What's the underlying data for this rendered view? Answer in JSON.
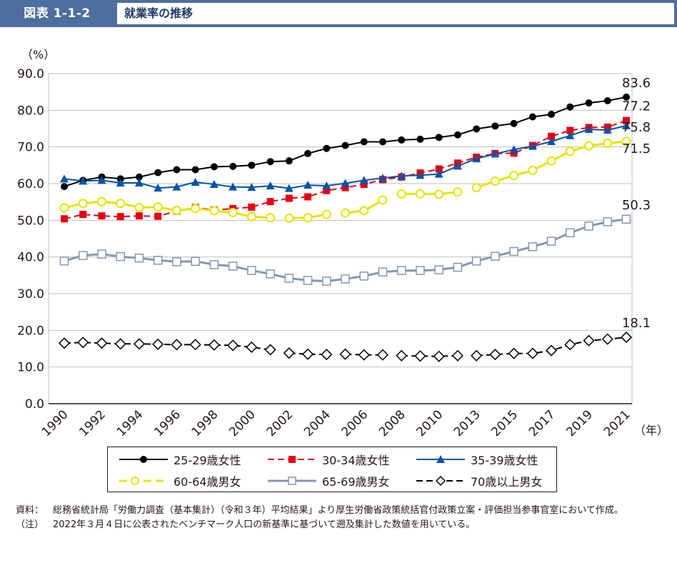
{
  "header": {
    "tag": "図表 1-1-2",
    "title": "就業率の推移"
  },
  "colors": {
    "header_bg": "#4d6f9e",
    "s25_29": "#000000",
    "s30_34": "#e60012",
    "s35_39": "#0054a6",
    "s60_64": "#e5e500",
    "s65_69": "#8497b0",
    "s70plus": "#000000"
  },
  "chart_data": {
    "type": "line",
    "title": "就業率の推移",
    "ylabel": "（%）",
    "xlabel": "（年）",
    "ylim": [
      0,
      90
    ],
    "yticks": [
      "0.0",
      "10.0",
      "20.0",
      "30.0",
      "40.0",
      "50.0",
      "60.0",
      "70.0",
      "80.0",
      "90.0"
    ],
    "x_tick_labels": [
      "1990",
      "1992",
      "1994",
      "1996",
      "1998",
      "2000",
      "2002",
      "2004",
      "2006",
      "2008",
      "2010",
      "2013",
      "2015",
      "2017",
      "2019",
      "2021"
    ],
    "x_tick_positions": [
      0,
      2,
      4,
      6,
      8,
      10,
      12,
      14,
      16,
      18,
      20,
      22,
      24,
      26,
      28,
      30
    ],
    "n_points": 31,
    "gaps": [
      [
        11,
        12
      ],
      [
        14,
        15
      ],
      [
        17,
        18
      ],
      [
        21,
        22
      ]
    ],
    "series": [
      {
        "name": "25-29歳女性",
        "style": "s25_29",
        "marker": "circle",
        "end_label": "83.6",
        "values": [
          59.2,
          60.9,
          61.8,
          61.3,
          61.8,
          63.0,
          63.8,
          63.8,
          64.6,
          64.7,
          65.0,
          66.0,
          66.2,
          68.2,
          69.6,
          70.4,
          71.4,
          71.4,
          71.9,
          72.1,
          72.6,
          73.3,
          74.9,
          75.7,
          76.4,
          78.2,
          78.9,
          80.9,
          82.0,
          82.6,
          83.6
        ]
      },
      {
        "name": "30-34歳女性",
        "style": "s30_34",
        "marker": "square",
        "end_label": "77.2",
        "values": [
          50.4,
          51.6,
          51.2,
          51.0,
          51.2,
          51.1,
          52.5,
          53.5,
          52.8,
          53.2,
          53.6,
          55.1,
          56.0,
          56.4,
          58.1,
          58.9,
          59.8,
          61.1,
          61.8,
          62.9,
          64.0,
          65.6,
          67.2,
          68.2,
          68.3,
          70.4,
          72.9,
          74.5,
          75.3,
          75.4,
          77.2
        ]
      },
      {
        "name": "35-39歳女性",
        "style": "s35_39",
        "marker": "triangle",
        "end_label": "75.8",
        "values": [
          61.3,
          60.7,
          60.9,
          60.2,
          60.2,
          58.8,
          59.1,
          60.4,
          59.8,
          59.1,
          59.0,
          59.4,
          58.7,
          59.6,
          59.4,
          60.1,
          60.9,
          61.5,
          62.1,
          62.3,
          62.6,
          64.8,
          66.8,
          68.1,
          69.3,
          70.2,
          71.5,
          73.1,
          74.8,
          74.6,
          75.8
        ]
      },
      {
        "name": "60-64歳男女",
        "style": "s60_64",
        "marker": "circle-open",
        "end_label": "71.5",
        "values": [
          53.4,
          54.6,
          55.1,
          54.6,
          53.5,
          53.6,
          52.7,
          53.2,
          52.6,
          52.1,
          51.0,
          50.7,
          50.6,
          50.7,
          51.6,
          52.0,
          52.6,
          55.5,
          57.2,
          57.2,
          57.1,
          57.7,
          58.9,
          60.7,
          62.2,
          63.6,
          66.2,
          68.8,
          70.3,
          71.0,
          71.5
        ]
      },
      {
        "name": "65-69歳男女",
        "style": "s65_69",
        "marker": "square-open",
        "end_label": "50.3",
        "values": [
          38.9,
          40.4,
          40.8,
          40.1,
          39.7,
          39.1,
          38.7,
          38.8,
          37.9,
          37.5,
          36.3,
          35.4,
          34.2,
          33.6,
          33.4,
          34.0,
          34.8,
          35.9,
          36.3,
          36.3,
          36.5,
          37.2,
          38.9,
          40.2,
          41.5,
          42.8,
          44.3,
          46.6,
          48.4,
          49.6,
          50.3
        ]
      },
      {
        "name": "70歳以上男女",
        "style": "s70plus",
        "marker": "diamond-open",
        "end_label": "18.1",
        "values": [
          16.5,
          16.7,
          16.5,
          16.3,
          16.3,
          16.2,
          16.1,
          16.1,
          16.0,
          15.9,
          15.4,
          14.7,
          13.8,
          13.5,
          13.4,
          13.5,
          13.3,
          13.3,
          13.1,
          13.0,
          12.9,
          13.1,
          13.1,
          13.4,
          13.7,
          13.7,
          14.5,
          16.1,
          17.2,
          17.6,
          18.1
        ]
      }
    ]
  },
  "legend": [
    {
      "label": "25-29歳女性"
    },
    {
      "label": "30-34歳女性"
    },
    {
      "label": "35-39歳女性"
    },
    {
      "label": "60-64歳男女"
    },
    {
      "label": "65-69歳男女"
    },
    {
      "label": "70歳以上男女"
    }
  ],
  "notes": {
    "source_label": "資料：",
    "source_text": "総務省統計局「労働力調査（基本集計）（令和３年）平均結果」より厚生労働省政策統括官付政策立案・評価担当参事官室において作成。",
    "note_label": "（注）",
    "note_text": "2022年３月４日に公表されたベンチマーク人口の新基準に基づいて遡及集計した数値を用いている。"
  }
}
